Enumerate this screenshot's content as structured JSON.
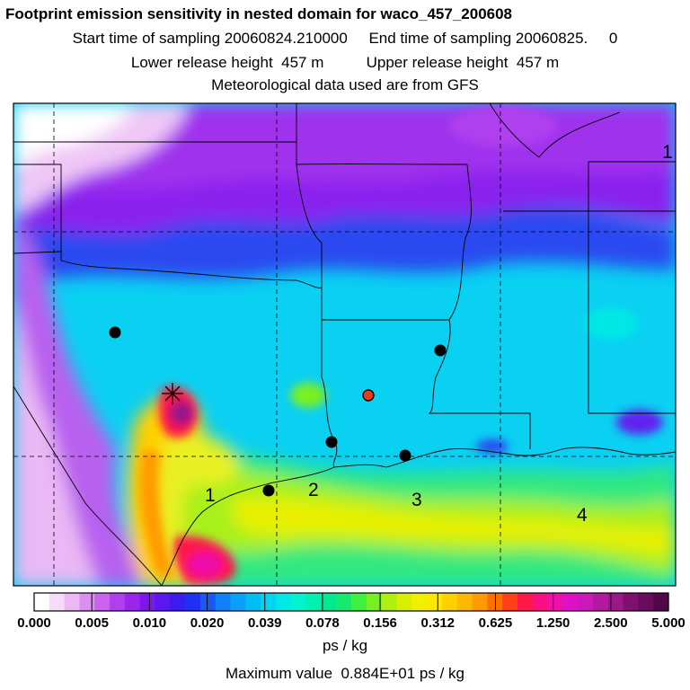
{
  "header": {
    "title": "Footprint emission sensitivity in nested domain for waco_457_200608",
    "sampling_line": "Start time of sampling 20060824.210000     End time of sampling 20060825.     0",
    "height_line": "Lower release height  457 m          Upper release height  457 m",
    "met_line": "Meteorological data used are from GFS"
  },
  "map": {
    "contour_labels": [
      "1",
      "1",
      "2",
      "3",
      "4"
    ],
    "receptor_color": "#e83a1e",
    "site_color": "#000000"
  },
  "colorbar": {
    "labels": [
      "0.000",
      "0.005",
      "0.010",
      "0.020",
      "0.039",
      "0.078",
      "0.156",
      "0.312",
      "0.625",
      "1.250",
      "2.500",
      "5.000"
    ],
    "colors": [
      "#ffffff",
      "#f6dcf8",
      "#ebb8f3",
      "#dc8ff0",
      "#c864ef",
      "#b040ef",
      "#9a26ee",
      "#7e16ef",
      "#5a18ee",
      "#3a1cec",
      "#2030f0",
      "#1858f5",
      "#1080f8",
      "#08a0fa",
      "#00bcf5",
      "#00d4f0",
      "#00e8e6",
      "#00f2d0",
      "#00f0b0",
      "#00e890",
      "#18e870",
      "#40f040",
      "#78f020",
      "#b0f010",
      "#d8f000",
      "#f0f000",
      "#ffe800",
      "#ffd000",
      "#ffb800",
      "#ff9a00",
      "#ff7000",
      "#ff4018",
      "#ff1848",
      "#f81080",
      "#ee10a8",
      "#e010c8",
      "#cc18b8",
      "#b418a0",
      "#9a1888",
      "#801070",
      "#680c5c",
      "#520848"
    ],
    "unit": "ps / kg",
    "max_value": "Maximum value  0.884E+01 ps / kg"
  }
}
